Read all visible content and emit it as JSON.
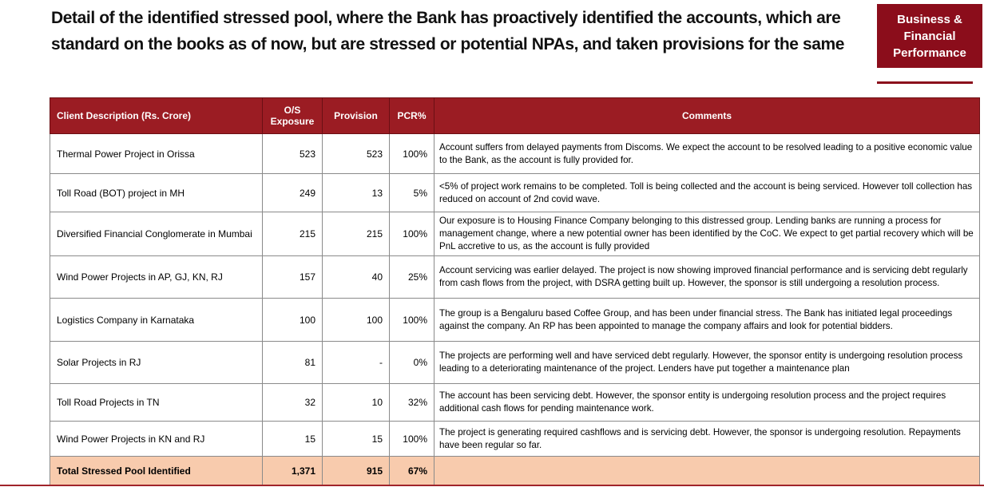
{
  "header": {
    "title": "Detail of the identified stressed pool, where the Bank has proactively identified the accounts, which are standard on the books as of now, but are stressed or potential NPAs, and taken provisions for the same",
    "badge": "Business & Financial Performance"
  },
  "table": {
    "columns": [
      "Client Description (Rs. Crore)",
      "O/S Exposure",
      "Provision",
      "PCR%",
      "Comments"
    ],
    "rows": [
      [
        "Thermal Power Project in Orissa",
        "523",
        "523",
        "100%",
        "Account suffers from delayed payments from Discoms. We expect the account to be resolved leading to a positive economic value to the Bank, as the account is fully provided for."
      ],
      [
        "Toll Road (BOT) project in MH",
        "249",
        "13",
        "5%",
        "<5% of project work remains to be completed. Toll is being collected and the account is being serviced. However toll collection has reduced on account of 2nd covid wave."
      ],
      [
        "Diversified Financial Conglomerate in Mumbai",
        "215",
        "215",
        "100%",
        "Our exposure is to Housing Finance Company belonging to this distressed group. Lending banks are running a process for management change, where a new potential owner has been identified by the CoC.  We expect to get partial recovery which will be PnL accretive to us, as the account is fully provided"
      ],
      [
        "Wind Power Projects in AP, GJ, KN, RJ",
        "157",
        "40",
        "25%",
        "Account servicing was earlier delayed. The project is now showing improved financial performance and is servicing debt  regularly from cash flows from the project, with DSRA getting built up. However, the sponsor is still undergoing a resolution process."
      ],
      [
        "Logistics Company in Karnataka",
        "100",
        "100",
        "100%",
        "The group is a Bengaluru based Coffee Group, and has been under financial stress. The Bank has initiated legal proceedings against the company. An RP has been appointed to manage the company affairs and look for potential bidders."
      ],
      [
        "Solar Projects in RJ",
        "81",
        "-",
        "0%",
        "The projects are performing well and have serviced debt regularly. However, the sponsor entity is undergoing resolution process leading to a deteriorating maintenance of the project. Lenders have put together a maintenance plan"
      ],
      [
        "Toll Road Projects in TN",
        "32",
        "10",
        "32%",
        "The account has been servicing debt. However, the sponsor entity is undergoing resolution process and the project requires additional cash flows for pending maintenance work."
      ],
      [
        "Wind Power Projects in KN and RJ",
        "15",
        "15",
        "100%",
        "The project is generating required cashflows and is servicing debt. However, the sponsor is undergoing resolution. Repayments have been regular so far."
      ]
    ],
    "total": [
      "Total Stressed Pool Identified",
      "1,371",
      "915",
      "67%",
      ""
    ]
  }
}
